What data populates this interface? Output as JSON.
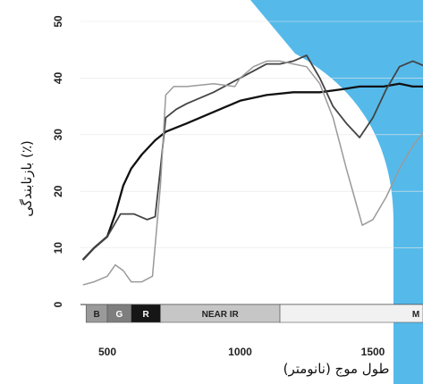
{
  "chart_data": {
    "type": "line",
    "xlabel": "طول موج (نانومتر)",
    "ylabel": "بازتابندگی (٪)",
    "xlim": [
      400,
      1840
    ],
    "ylim": [
      0,
      50
    ],
    "x_ticks": [
      "500",
      "1000",
      "1500"
    ],
    "y_ticks": [
      "0",
      "10",
      "20",
      "30",
      "40",
      "50"
    ],
    "bands": [
      {
        "label": "B",
        "from": 420,
        "to": 500,
        "color": "#9a9a9a"
      },
      {
        "label": "G",
        "from": 500,
        "to": 590,
        "color": "#7e7e7e"
      },
      {
        "label": "R",
        "from": 590,
        "to": 700,
        "color": "#161616"
      },
      {
        "label": "NEAR IR",
        "from": 700,
        "to": 1150,
        "color": "#c6c6c6"
      },
      {
        "label": "M",
        "from": 1150,
        "to": 1840,
        "color": "#f1f1f1"
      }
    ],
    "series": [
      {
        "color": "#111111",
        "width": 2.3,
        "x": [
          410,
          450,
          500,
          530,
          560,
          590,
          630,
          680,
          720,
          800,
          900,
          1000,
          1100,
          1200,
          1300,
          1380,
          1450,
          1500,
          1540,
          1600,
          1650,
          1700,
          1750,
          1800
        ],
        "y": [
          8,
          10,
          12,
          16,
          21,
          24,
          26.5,
          29,
          30.5,
          32,
          34,
          36,
          37,
          37.5,
          37.5,
          38,
          38.5,
          38.5,
          38.5,
          39,
          38.5,
          38.5,
          38.5,
          38.5
        ]
      },
      {
        "color": "#444444",
        "width": 1.8,
        "x": [
          410,
          450,
          500,
          550,
          600,
          650,
          680,
          700,
          720,
          760,
          800,
          900,
          1000,
          1100,
          1150,
          1200,
          1250,
          1300,
          1350,
          1400,
          1450,
          1500,
          1550,
          1600,
          1650,
          1700,
          1800
        ],
        "y": [
          8,
          10,
          12,
          16,
          16,
          15,
          15.5,
          24,
          33,
          34.5,
          35.5,
          37.5,
          40,
          42.5,
          42.5,
          43,
          44,
          40,
          35,
          32,
          29.5,
          33,
          38,
          42,
          43,
          42,
          42
        ]
      },
      {
        "color": "#9a9a9a",
        "width": 1.5,
        "x": [
          410,
          450,
          500,
          530,
          560,
          590,
          630,
          670,
          700,
          720,
          750,
          800,
          900,
          980,
          1000,
          1050,
          1100,
          1150,
          1200,
          1250,
          1300,
          1350,
          1400,
          1430,
          1460,
          1500,
          1550,
          1600,
          1650,
          1700,
          1750,
          1800
        ],
        "y": [
          3.5,
          4,
          5,
          7,
          6,
          4,
          4,
          5,
          21,
          37,
          38.5,
          38.5,
          39,
          38.5,
          40,
          42,
          43,
          43,
          42.5,
          42,
          39,
          33,
          24,
          19,
          14,
          15,
          19,
          24,
          28,
          31,
          32,
          32
        ]
      }
    ]
  }
}
